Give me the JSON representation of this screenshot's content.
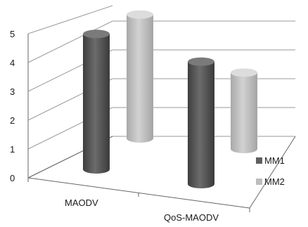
{
  "chart_data": {
    "type": "bar",
    "style": "3d-cylinder",
    "categories": [
      "MAODV",
      "QoS-MAODV"
    ],
    "series": [
      {
        "name": "MM1",
        "values": [
          4.7,
          4.25
        ],
        "color": "#5f5f5f"
      },
      {
        "name": "MM2",
        "values": [
          4.3,
          2.65
        ],
        "color": "#bdbdbd"
      }
    ],
    "ylim": [
      0,
      5
    ],
    "yticks": [
      "0",
      "1",
      "2",
      "3",
      "4",
      "5"
    ],
    "grid": true,
    "legend": "right"
  }
}
